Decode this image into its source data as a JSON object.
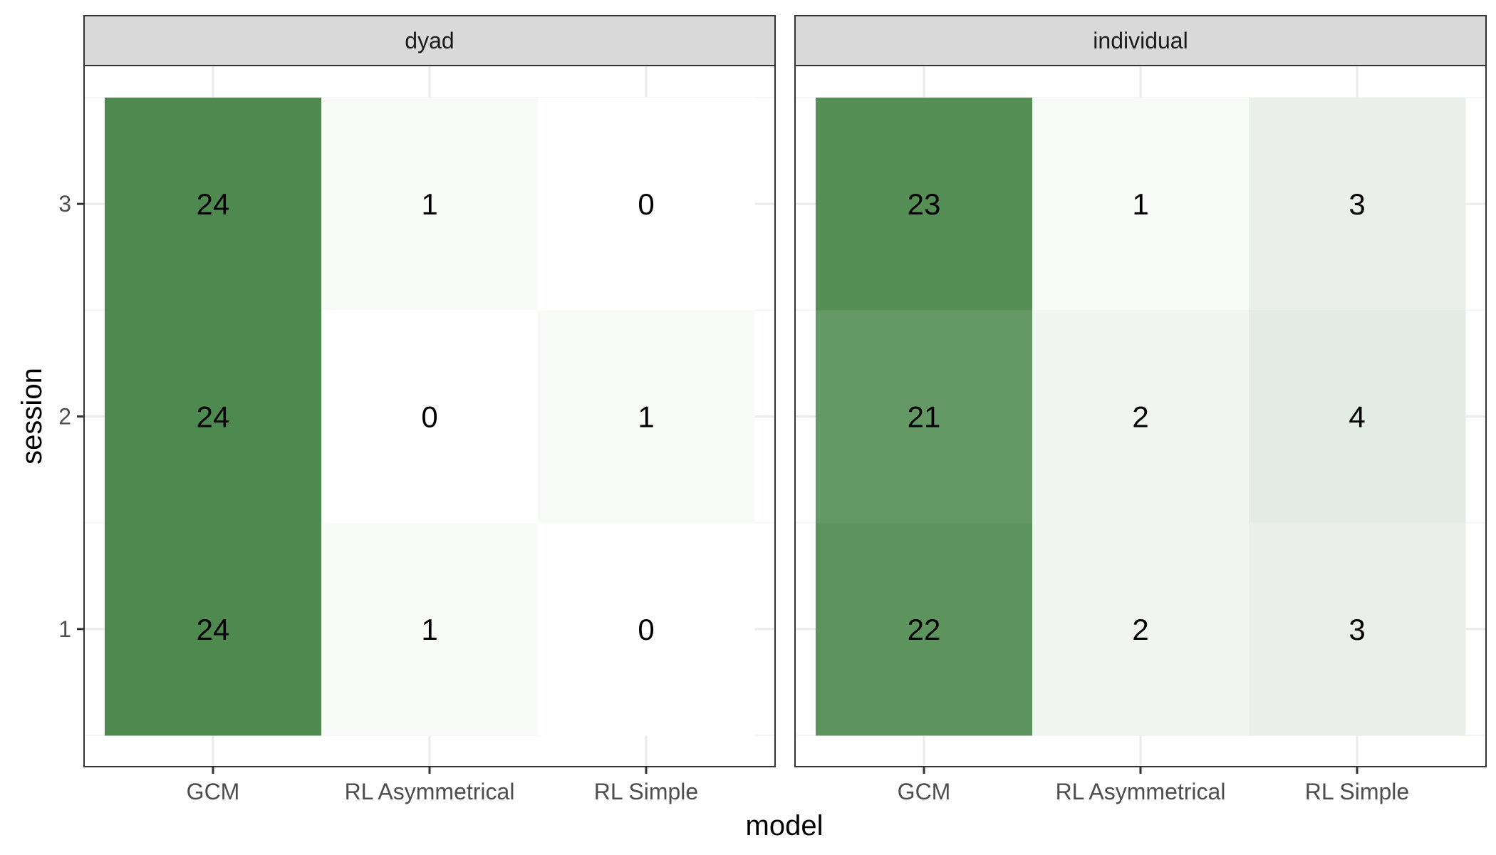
{
  "chart_data": {
    "type": "heatmap",
    "xlabel": "model",
    "ylabel": "session",
    "x_categories": [
      "GCM",
      "RL Asymmetrical",
      "RL Simple"
    ],
    "y_categories": [
      "1",
      "2",
      "3"
    ],
    "fill_scale": {
      "low": "#ffffff",
      "high": "#4e8a4f",
      "min": 0,
      "max": 24
    },
    "grid": true,
    "legend": "none",
    "panels": [
      {
        "facet": "dyad",
        "cells": [
          {
            "model": "GCM",
            "session": "3",
            "value": 24
          },
          {
            "model": "RL Asymmetrical",
            "session": "3",
            "value": 1
          },
          {
            "model": "RL Simple",
            "session": "3",
            "value": 0
          },
          {
            "model": "GCM",
            "session": "2",
            "value": 24
          },
          {
            "model": "RL Asymmetrical",
            "session": "2",
            "value": 0
          },
          {
            "model": "RL Simple",
            "session": "2",
            "value": 1
          },
          {
            "model": "GCM",
            "session": "1",
            "value": 24
          },
          {
            "model": "RL Asymmetrical",
            "session": "1",
            "value": 1
          },
          {
            "model": "RL Simple",
            "session": "1",
            "value": 0
          }
        ]
      },
      {
        "facet": "individual",
        "cells": [
          {
            "model": "GCM",
            "session": "3",
            "value": 23
          },
          {
            "model": "RL Asymmetrical",
            "session": "3",
            "value": 1
          },
          {
            "model": "RL Simple",
            "session": "3",
            "value": 3
          },
          {
            "model": "GCM",
            "session": "2",
            "value": 21
          },
          {
            "model": "RL Asymmetrical",
            "session": "2",
            "value": 2
          },
          {
            "model": "RL Simple",
            "session": "2",
            "value": 4
          },
          {
            "model": "GCM",
            "session": "1",
            "value": 22
          },
          {
            "model": "RL Asymmetrical",
            "session": "1",
            "value": 2
          },
          {
            "model": "RL Simple",
            "session": "1",
            "value": 3
          }
        ]
      }
    ]
  }
}
